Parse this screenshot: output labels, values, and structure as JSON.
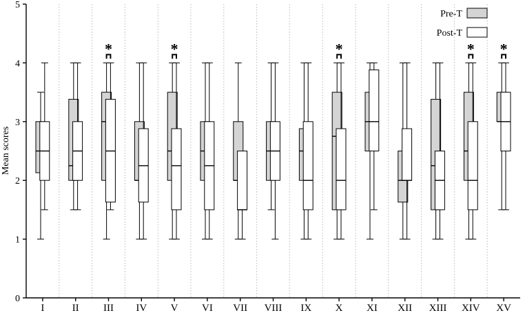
{
  "chart_data": {
    "type": "boxplot",
    "title": "",
    "xlabel": "",
    "ylabel": "Mean scores",
    "ylim": [
      0,
      5
    ],
    "yticks": [
      "0",
      "1",
      "2",
      "3",
      "4",
      "5"
    ],
    "grid": "vertical dotted separators between groups",
    "legend_position": "top-right",
    "categories": [
      "I",
      "II",
      "III",
      "IV",
      "V",
      "VI",
      "VII",
      "VIII",
      "IX",
      "X",
      "XI",
      "XII",
      "XIII",
      "XIV",
      "XV"
    ],
    "significance_marker": "*",
    "significant": [
      false,
      false,
      true,
      false,
      true,
      false,
      false,
      false,
      false,
      true,
      false,
      false,
      false,
      true,
      true
    ],
    "series": [
      {
        "name": "Pre-T",
        "color": "#d4d4d4",
        "boxes": [
          {
            "min": 1.0,
            "q1": 2.13,
            "median": 2.5,
            "q3": 3.0,
            "max": 3.5
          },
          {
            "min": 1.5,
            "q1": 2.0,
            "median": 2.25,
            "q3": 3.38,
            "max": 4.0
          },
          {
            "min": 1.0,
            "q1": 2.0,
            "median": 3.0,
            "q3": 3.5,
            "max": 4.0
          },
          {
            "min": 1.0,
            "q1": 2.0,
            "median": 2.0,
            "q3": 3.0,
            "max": 4.0
          },
          {
            "min": 1.0,
            "q1": 2.0,
            "median": 2.5,
            "q3": 3.5,
            "max": 4.0
          },
          {
            "min": 1.0,
            "q1": 2.0,
            "median": 2.5,
            "q3": 3.0,
            "max": 4.0
          },
          {
            "min": 1.0,
            "q1": 2.0,
            "median": 2.0,
            "q3": 3.0,
            "max": 4.0
          },
          {
            "min": 1.5,
            "q1": 2.0,
            "median": 2.5,
            "q3": 3.0,
            "max": 4.0
          },
          {
            "min": 1.0,
            "q1": 2.0,
            "median": 2.5,
            "q3": 2.88,
            "max": 4.0
          },
          {
            "min": 1.0,
            "q1": 1.5,
            "median": 2.75,
            "q3": 3.5,
            "max": 4.0
          },
          {
            "min": 1.0,
            "q1": 2.5,
            "median": 3.0,
            "q3": 3.5,
            "max": 4.0
          },
          {
            "min": 1.0,
            "q1": 1.63,
            "median": 2.0,
            "q3": 2.5,
            "max": 4.0
          },
          {
            "min": 1.0,
            "q1": 1.5,
            "median": 2.25,
            "q3": 3.38,
            "max": 4.0
          },
          {
            "min": 1.0,
            "q1": 2.0,
            "median": 2.5,
            "q3": 3.5,
            "max": 4.0
          },
          {
            "min": 1.5,
            "q1": 3.0,
            "median": 3.0,
            "q3": 3.5,
            "max": 4.0
          }
        ]
      },
      {
        "name": "Post-T",
        "color": "#ffffff",
        "boxes": [
          {
            "min": 1.5,
            "q1": 2.0,
            "median": 2.5,
            "q3": 3.0,
            "max": 4.0
          },
          {
            "min": 1.5,
            "q1": 2.0,
            "median": 2.5,
            "q3": 3.0,
            "max": 4.0
          },
          {
            "min": 1.5,
            "q1": 1.63,
            "median": 2.5,
            "q3": 3.38,
            "max": 4.0
          },
          {
            "min": 1.0,
            "q1": 1.63,
            "median": 2.25,
            "q3": 2.88,
            "max": 4.0
          },
          {
            "min": 1.0,
            "q1": 1.5,
            "median": 2.25,
            "q3": 2.88,
            "max": 4.0
          },
          {
            "min": 1.0,
            "q1": 1.5,
            "median": 2.25,
            "q3": 3.0,
            "max": 4.0
          },
          {
            "min": 1.0,
            "q1": 1.5,
            "median": 1.5,
            "q3": 2.5,
            "max": 2.5
          },
          {
            "min": 1.0,
            "q1": 2.0,
            "median": 2.5,
            "q3": 3.0,
            "max": 4.0
          },
          {
            "min": 1.0,
            "q1": 1.5,
            "median": 2.0,
            "q3": 3.0,
            "max": 4.0
          },
          {
            "min": 1.0,
            "q1": 1.5,
            "median": 2.0,
            "q3": 2.88,
            "max": 4.0
          },
          {
            "min": 1.5,
            "q1": 2.5,
            "median": 3.0,
            "q3": 3.88,
            "max": 4.0
          },
          {
            "min": 1.0,
            "q1": 2.0,
            "median": 2.0,
            "q3": 2.88,
            "max": 4.0
          },
          {
            "min": 1.0,
            "q1": 1.5,
            "median": 2.0,
            "q3": 2.5,
            "max": 4.0
          },
          {
            "min": 1.0,
            "q1": 1.5,
            "median": 2.0,
            "q3": 3.0,
            "max": 4.0
          },
          {
            "min": 1.5,
            "q1": 2.5,
            "median": 3.0,
            "q3": 3.5,
            "max": 4.0
          }
        ]
      }
    ]
  }
}
